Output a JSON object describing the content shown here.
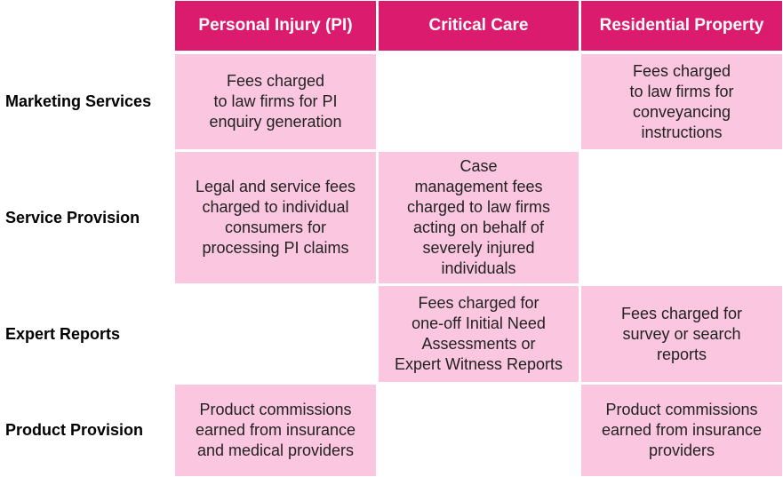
{
  "columns": [
    {
      "label": "Personal Injury (PI)"
    },
    {
      "label": "Critical Care"
    },
    {
      "label": "Residential Property"
    }
  ],
  "rows": [
    {
      "label": "Marketing Services",
      "cells": [
        "Fees charged\nto law firms for PI\nenquiry generation",
        "",
        "Fees charged\nto law firms for\nconveyancing\ninstructions"
      ]
    },
    {
      "label": "Service Provision",
      "cells": [
        "Legal and service fees\ncharged to individual\nconsumers for\nprocessing PI claims",
        "Case\nmanagement fees\ncharged to law firms\nacting on behalf of\nseverely injured\nindividuals",
        ""
      ]
    },
    {
      "label": "Expert Reports",
      "cells": [
        "",
        "Fees charged for\none-off Initial Need\nAssessments or\nExpert Witness Reports",
        "Fees charged for\nsurvey or search\nreports"
      ]
    },
    {
      "label": "Product Provision",
      "cells": [
        "Product commissions\nearned from insurance\nand medical providers",
        "",
        "Product commissions\nearned from insurance\nproviders"
      ]
    }
  ],
  "colors": {
    "header": "#db1c6e",
    "filled_cell": "#fbc6df",
    "text": "#222222"
  }
}
